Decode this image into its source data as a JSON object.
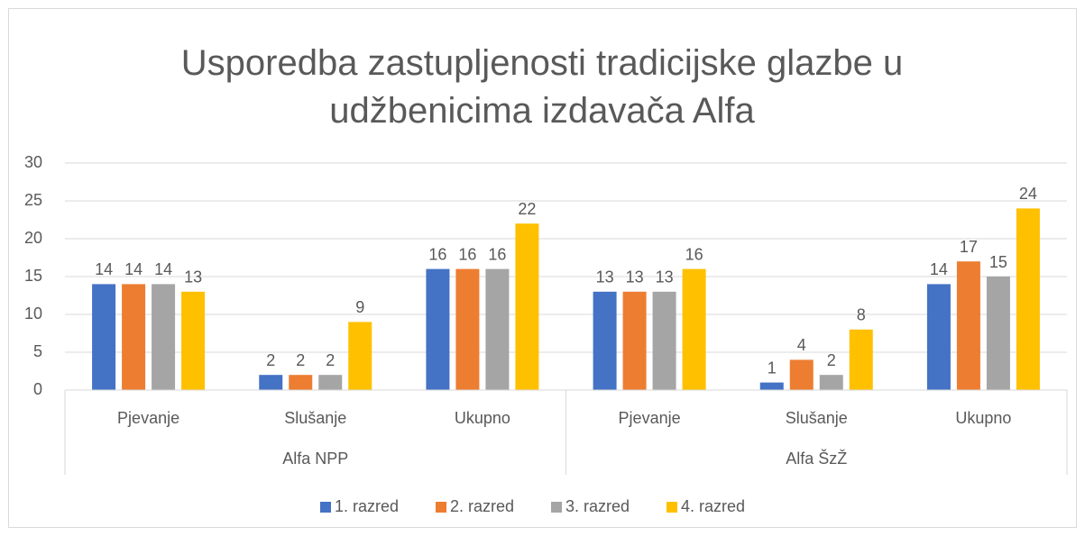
{
  "chart_data": {
    "type": "bar",
    "title": "Usporedba zastupljenosti tradicijske glazbe u udžbenicima izdavača Alfa",
    "groups": [
      {
        "name": "Alfa NPP",
        "categories": [
          "Pjevanje",
          "Slušanje",
          "Ukupno"
        ]
      },
      {
        "name": "Alfa ŠzŽ",
        "categories": [
          "Pjevanje",
          "Slušanje",
          "Ukupno"
        ]
      }
    ],
    "series": [
      {
        "name": "1. razred",
        "color": "#4472c4",
        "values": [
          14,
          2,
          16,
          13,
          1,
          14
        ]
      },
      {
        "name": "2. razred",
        "color": "#ed7d31",
        "values": [
          14,
          2,
          16,
          13,
          4,
          17
        ]
      },
      {
        "name": "3. razred",
        "color": "#a5a5a5",
        "values": [
          14,
          2,
          16,
          13,
          2,
          15
        ]
      },
      {
        "name": "4. razred",
        "color": "#ffc000",
        "values": [
          13,
          9,
          22,
          16,
          8,
          24
        ]
      }
    ],
    "ylim": [
      0,
      30
    ],
    "yticks": [
      0,
      5,
      10,
      15,
      20,
      25,
      30
    ],
    "grid": true,
    "legend": "bottom"
  }
}
